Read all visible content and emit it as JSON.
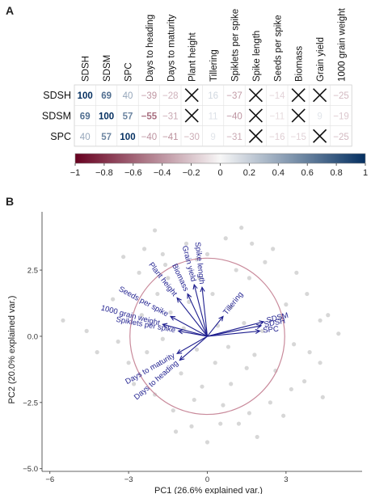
{
  "panels": {
    "a": "A",
    "b": "B"
  },
  "chart_data": [
    {
      "type": "heatmap",
      "columns": [
        "SDSH",
        "SDSM",
        "SPC",
        "Days to heading",
        "Days to maturity",
        "Plant height",
        "Tillering",
        "Spiklets per spike",
        "Spike length",
        "Seeds per spike",
        "Biomass",
        "Grain yield",
        "1000 grain weight"
      ],
      "rows": [
        {
          "name": "SDSH",
          "values": [
            100,
            69,
            40,
            -39,
            -28,
            null,
            16,
            -37,
            null,
            -14,
            null,
            null,
            -25
          ],
          "crossed": [
            5,
            8,
            10,
            11
          ]
        },
        {
          "name": "SDSM",
          "values": [
            69,
            100,
            57,
            -55,
            -31,
            null,
            11,
            -40,
            null,
            -11,
            null,
            9,
            -19
          ],
          "crossed": [
            5,
            8,
            10
          ]
        },
        {
          "name": "SPC",
          "values": [
            40,
            57,
            100,
            -40,
            -41,
            -30,
            9,
            -31,
            null,
            -16,
            -15,
            null,
            -25
          ],
          "crossed": [
            8,
            11
          ]
        }
      ],
      "colorbar": {
        "ticks": [
          "−1",
          "−0.8",
          "−0.6",
          "−0.4",
          "−0.2",
          "0",
          "0.2",
          "0.4",
          "0.6",
          "0.8",
          "1"
        ],
        "range": [
          -1,
          1
        ],
        "low_color": "#67001f",
        "mid_color": "#f7f7f7",
        "high_color": "#053061"
      }
    },
    {
      "type": "scatter",
      "subtype": "pca-biplot",
      "xlabel": "PC1 (26.6% explained var.)",
      "ylabel": "PC2 (20.0% explained var.)",
      "xticks": [
        -6,
        -3,
        0,
        3
      ],
      "yticks": [
        -5.0,
        -2.5,
        0.0,
        2.5
      ],
      "ytick_labels": [
        "−5.0",
        "−2.5",
        "0.0",
        "2.5"
      ],
      "xtick_labels": [
        "−6",
        "−3",
        "0",
        "3"
      ],
      "xlim": [
        -6.3,
        5.9
      ],
      "ylim": [
        -5.1,
        4.7
      ],
      "circle": {
        "center": [
          0,
          0
        ],
        "radius": 2.95,
        "color": "#c98a9b"
      },
      "point_color": "#d3d3d3",
      "arrow_color": "#1f1f8f",
      "loadings": [
        {
          "name": "SDSM",
          "x": 2.15,
          "y": 0.55
        },
        {
          "name": "SDSH",
          "x": 2.05,
          "y": 0.4
        },
        {
          "name": "SPC",
          "x": 2.0,
          "y": 0.2
        },
        {
          "name": "Tillering",
          "x": 0.6,
          "y": 0.75
        },
        {
          "name": "Grain yield",
          "x": -0.5,
          "y": 1.95
        },
        {
          "name": "Spike length",
          "x": -0.2,
          "y": 1.85
        },
        {
          "name": "Biomass",
          "x": -0.75,
          "y": 1.6
        },
        {
          "name": "Plant height",
          "x": -1.15,
          "y": 1.45
        },
        {
          "name": "Seeds per spike",
          "x": -1.4,
          "y": 0.75
        },
        {
          "name": "1000 grain weight",
          "x": -1.7,
          "y": 0.45
        },
        {
          "name": "Spiklets per spike",
          "x": -1.1,
          "y": 0.2
        },
        {
          "name": "Days to maturity",
          "x": -1.15,
          "y": -0.65
        },
        {
          "name": "Days to heading",
          "x": -1.05,
          "y": -0.9
        }
      ],
      "points": [
        [
          -5.5,
          0.6
        ],
        [
          -4.6,
          0.2
        ],
        [
          -3.2,
          3.0
        ],
        [
          -2.0,
          4.0
        ],
        [
          -1.7,
          3.1
        ],
        [
          -2.6,
          2.4
        ],
        [
          -1.5,
          2.2
        ],
        [
          -0.8,
          3.5
        ],
        [
          -0.4,
          2.9
        ],
        [
          0.7,
          3.7
        ],
        [
          1.3,
          4.1
        ],
        [
          1.6,
          2.2
        ],
        [
          2.2,
          2.8
        ],
        [
          2.5,
          3.3
        ],
        [
          3.0,
          1.2
        ],
        [
          3.8,
          1.6
        ],
        [
          4.3,
          0.6
        ],
        [
          4.6,
          0.8
        ],
        [
          5.0,
          0.1
        ],
        [
          3.9,
          -0.6
        ],
        [
          4.3,
          -1.0
        ],
        [
          3.7,
          -1.7
        ],
        [
          4.4,
          -2.3
        ],
        [
          3.2,
          -2.0
        ],
        [
          2.6,
          -1.3
        ],
        [
          2.4,
          -2.5
        ],
        [
          1.6,
          -2.9
        ],
        [
          1.2,
          -3.3
        ],
        [
          0.6,
          -2.6
        ],
        [
          0.0,
          -4.0
        ],
        [
          -0.6,
          -3.4
        ],
        [
          -1.3,
          -2.8
        ],
        [
          -2.0,
          -2.2
        ],
        [
          -2.8,
          -1.8
        ],
        [
          -3.0,
          -1.0
        ],
        [
          -3.4,
          -0.2
        ],
        [
          -2.5,
          0.8
        ],
        [
          -1.4,
          0.9
        ],
        [
          -0.7,
          1.3
        ],
        [
          0.2,
          1.6
        ],
        [
          0.9,
          1.1
        ],
        [
          1.4,
          0.5
        ],
        [
          0.8,
          -0.4
        ],
        [
          0.3,
          -1.0
        ],
        [
          -0.4,
          -0.5
        ],
        [
          -1.0,
          -1.4
        ],
        [
          -0.2,
          -1.9
        ],
        [
          0.9,
          -1.8
        ],
        [
          1.8,
          -0.7
        ],
        [
          2.1,
          0.2
        ],
        [
          -1.9,
          1.6
        ],
        [
          -2.3,
          -0.6
        ],
        [
          -1.7,
          -0.1
        ],
        [
          -0.9,
          0.3
        ],
        [
          0.4,
          0.4
        ],
        [
          1.1,
          2.5
        ],
        [
          -0.3,
          2.2
        ],
        [
          2.8,
          0.7
        ],
        [
          3.3,
          -0.3
        ],
        [
          -3.6,
          1.4
        ],
        [
          -1.2,
          -3.6
        ],
        [
          0.5,
          -3.3
        ],
        [
          1.9,
          -3.8
        ],
        [
          2.9,
          -3.0
        ],
        [
          -2.4,
          3.3
        ],
        [
          0.0,
          3.1
        ],
        [
          1.7,
          3.5
        ],
        [
          3.4,
          2.4
        ],
        [
          -4.2,
          -0.6
        ],
        [
          -0.5,
          -2.4
        ],
        [
          1.5,
          -1.2
        ],
        [
          -1.6,
          2.7
        ]
      ]
    }
  ]
}
